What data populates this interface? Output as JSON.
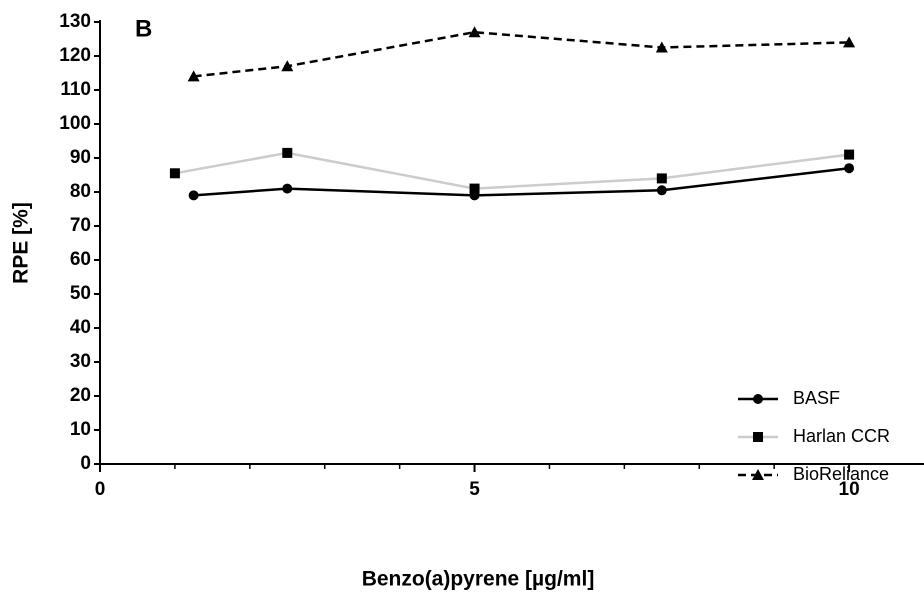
{
  "chart_data": {
    "type": "line",
    "panel_label": "B",
    "x_label": "Benzo(a)pyrene [µg/ml]",
    "y_label": "RPE [%]",
    "xlim": [
      0,
      11
    ],
    "xticks": [
      0,
      5,
      10
    ],
    "xminor": [
      1,
      2,
      3,
      4,
      6,
      7,
      8,
      9
    ],
    "ylim": [
      0,
      130
    ],
    "yticks": [
      0,
      10,
      20,
      30,
      40,
      50,
      60,
      70,
      80,
      90,
      100,
      110,
      120,
      130
    ],
    "legend": "lower right",
    "series": [
      {
        "name": "BASF",
        "color": "#000000",
        "dash": "solid",
        "marker": "circle",
        "x": [
          1.25,
          2.5,
          5,
          7.5,
          10
        ],
        "values": [
          79,
          81,
          79,
          80.5,
          87
        ]
      },
      {
        "name": "Harlan CCR",
        "color": "#cccccc",
        "marker_color": "#000000",
        "dash": "solid",
        "marker": "square",
        "x": [
          1,
          2.5,
          5,
          7.5,
          10
        ],
        "values": [
          85.5,
          91.5,
          81,
          84,
          91
        ]
      },
      {
        "name": "BioReliance",
        "color": "#000000",
        "dash": "dashed",
        "marker": "triangle",
        "x": [
          1.25,
          2.5,
          5,
          7.5,
          10
        ],
        "values": [
          114,
          117,
          127,
          122.5,
          124
        ]
      }
    ]
  }
}
